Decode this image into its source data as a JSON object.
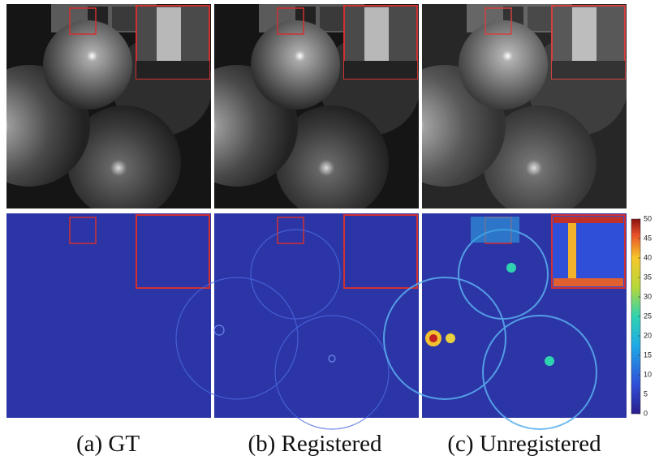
{
  "captions": [
    "(a) GT",
    "(b) Registered",
    "(c) Unregistered"
  ],
  "colorbar": {
    "lim": [
      0,
      50
    ],
    "ticks": [
      0,
      5,
      10,
      15,
      20,
      25,
      30,
      35,
      40,
      45,
      50
    ]
  }
}
